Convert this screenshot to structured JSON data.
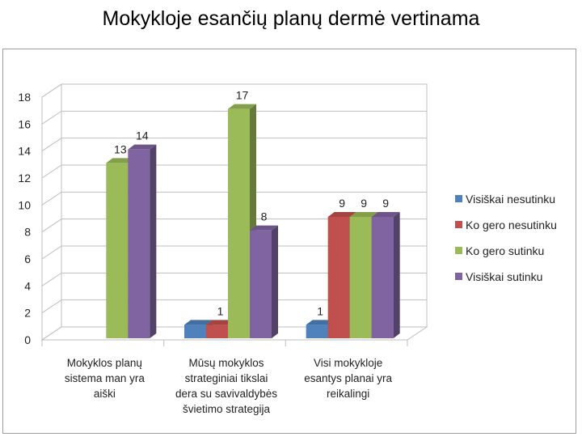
{
  "title": "Mokykloje esančių planų dermė vertinama",
  "chart_data": {
    "type": "bar",
    "title": "Mokykloje esančių planų dermė vertinama",
    "categories": [
      [
        "Mokyklos planų",
        "sistema man yra",
        "aiški"
      ],
      [
        "Mūsų mokyklos",
        "strateginiai tikslai",
        "dera su savivaldybės",
        "švietimo strategija"
      ],
      [
        "Visi mokykloje",
        "esantys planai yra",
        "reikalingi"
      ]
    ],
    "series": [
      {
        "name": "Visiškai nesutinku",
        "color": "#4F81BD",
        "values": [
          0,
          1,
          1
        ]
      },
      {
        "name": "Ko gero nesutinku",
        "color": "#C0504D",
        "values": [
          0,
          1,
          9
        ]
      },
      {
        "name": "Ko gero sutinku",
        "color": "#9BBB59",
        "values": [
          13,
          17,
          9
        ]
      },
      {
        "name": "Visiškai sutinku",
        "color": "#8064A2",
        "values": [
          14,
          8,
          9
        ]
      }
    ],
    "data_labels": [
      [
        null,
        null,
        13,
        14
      ],
      [
        null,
        1,
        17,
        8
      ],
      [
        1,
        9,
        9,
        9
      ]
    ],
    "ylim": [
      0,
      18
    ],
    "yticks": [
      0,
      2,
      4,
      6,
      8,
      10,
      12,
      14,
      16,
      18
    ],
    "grid": true,
    "legend": "right",
    "xlabel": "",
    "ylabel": ""
  }
}
